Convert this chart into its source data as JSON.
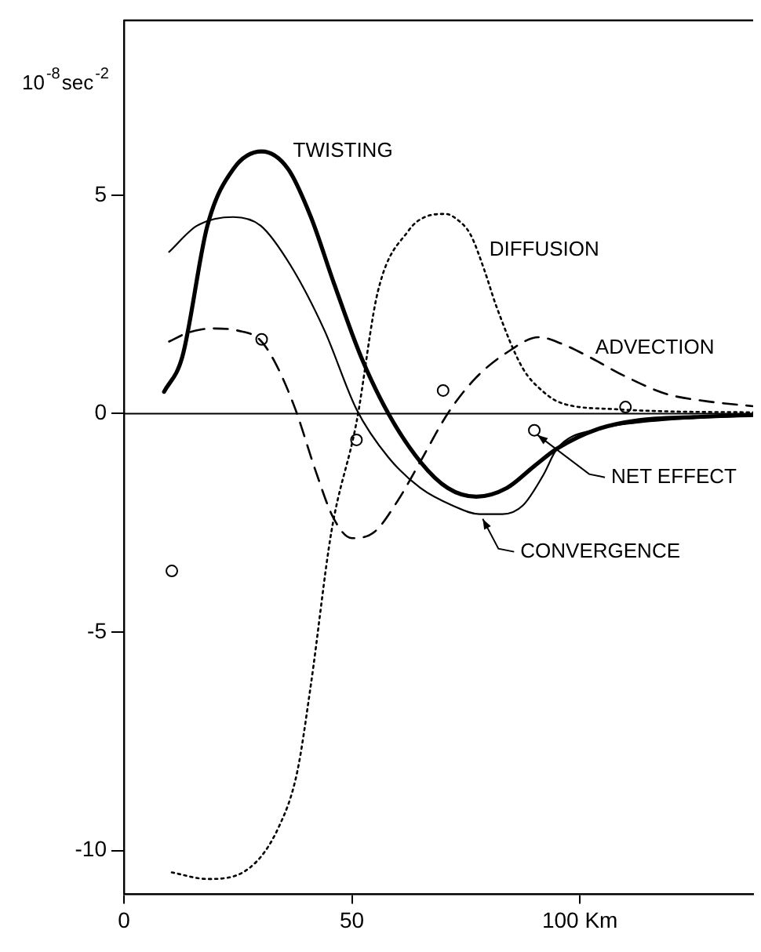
{
  "chart_data": {
    "type": "line",
    "ylabel": "10$^{-8}$sec$^{-2}$",
    "xlim": [
      0,
      138
    ],
    "xticks": [
      0,
      50,
      {
        "value": 100,
        "label": "100 Km"
      }
    ],
    "ylim": [
      -11,
      9
    ],
    "yticks": [
      -10,
      -5,
      0,
      5
    ],
    "grid": false,
    "legend": false,
    "ref_lines": [
      {
        "axis": "y",
        "value": 0,
        "color": "#000000",
        "line_style": "solid"
      }
    ],
    "series": [
      {
        "name": "TWISTING",
        "type": "line",
        "color": "#000000",
        "line_style": "solid",
        "marker": "none",
        "x": [
          8.8,
          12.8,
          18.3,
          24,
          30.2,
          36,
          41,
          46,
          52,
          58,
          65,
          71,
          77.3,
          84,
          90,
          95,
          104,
          113,
          125,
          138
        ],
        "values": [
          0.5,
          1.3,
          4.3,
          5.6,
          6.0,
          5.6,
          4.5,
          3.0,
          1.3,
          0,
          -1.1,
          -1.7,
          -1.9,
          -1.7,
          -1.2,
          -0.8,
          -0.35,
          -0.15,
          -0.08,
          -0.03
        ]
      },
      {
        "name": "CONVERGENCE",
        "type": "line",
        "color": "#000000",
        "line_style": "solid",
        "marker": "none",
        "x": [
          9.9,
          16,
          24,
          30,
          36.5,
          44,
          51,
          58,
          65,
          72,
          78,
          83,
          87.5,
          92,
          95,
          104,
          113,
          125,
          138
        ],
        "values": [
          3.7,
          4.3,
          4.5,
          4.3,
          3.4,
          1.9,
          0.1,
          -1.0,
          -1.7,
          -2.1,
          -2.3,
          -2.3,
          -2.1,
          -1.4,
          -0.8,
          -0.35,
          -0.2,
          -0.1,
          -0.05
        ]
      },
      {
        "name": "ADVECTION",
        "type": "line",
        "color": "#000000",
        "line_style": "dashed",
        "marker": "none",
        "x": [
          9.9,
          14,
          19.6,
          25,
          29.7,
          33,
          37.6,
          42,
          46,
          50,
          55,
          60,
          65,
          71,
          77,
          84,
          91,
          96,
          102,
          110,
          119,
          128,
          138
        ],
        "values": [
          1.65,
          1.85,
          1.95,
          1.9,
          1.7,
          1.2,
          0.1,
          -1.3,
          -2.4,
          -2.85,
          -2.7,
          -2.0,
          -1.1,
          0,
          0.8,
          1.4,
          1.75,
          1.6,
          1.3,
          0.85,
          0.45,
          0.28,
          0.17
        ]
      },
      {
        "name": "DIFFUSION",
        "type": "line",
        "color": "#000000",
        "line_style": "dotted",
        "marker": "none",
        "x": [
          10.5,
          18.3,
          27.5,
          34,
          38,
          41,
          45.5,
          51,
          55.7,
          62.5,
          66,
          70.5,
          73,
          76,
          79,
          81.7,
          87.4,
          92,
          96,
          108,
          120,
          138
        ],
        "values": [
          -10.5,
          -10.65,
          -10.4,
          -9.45,
          -8.2,
          -6.2,
          -2.7,
          -0.2,
          2.8,
          4.2,
          4.5,
          4.57,
          4.45,
          4.1,
          3.3,
          2.45,
          1.05,
          0.5,
          0.24,
          0.1,
          0.05,
          0.03
        ]
      },
      {
        "name": "NET EFFECT",
        "type": "scatter",
        "color": "#000000",
        "marker": "circle",
        "x": [
          10.5,
          30.2,
          51,
          70,
          90,
          110
        ],
        "values": [
          -3.6,
          1.7,
          -0.6,
          0.53,
          -0.38,
          0.15
        ]
      }
    ]
  }
}
